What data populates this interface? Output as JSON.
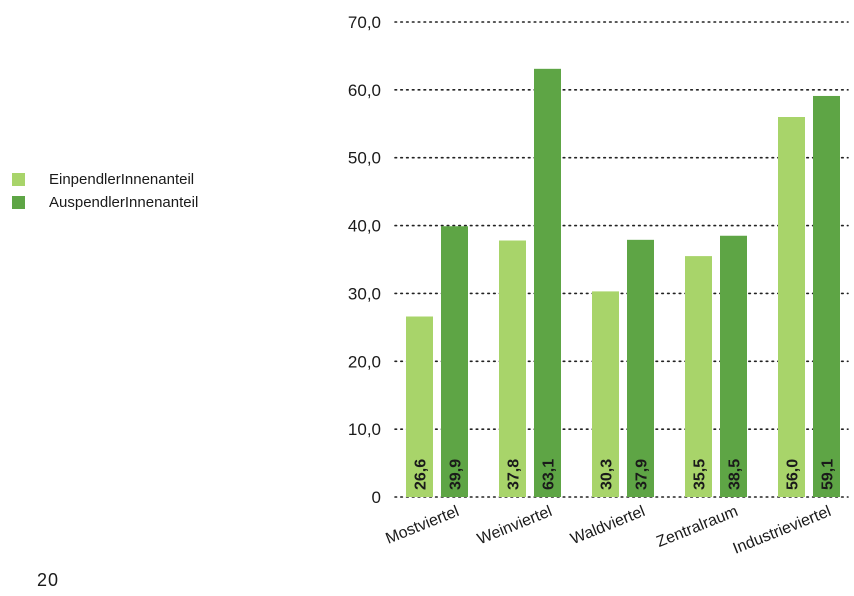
{
  "page_number": "20",
  "legend": [
    {
      "label": "EinpendlerInnenanteil",
      "color": "#a8d46a"
    },
    {
      "label": "AuspendlerInnenanteil",
      "color": "#5ea545"
    }
  ],
  "chart_data": {
    "type": "bar",
    "categories": [
      "Mostviertel",
      "Weinviertel",
      "Waldviertel",
      "Zentralraum",
      "Industrieviertel"
    ],
    "series": [
      {
        "name": "EinpendlerInnenanteil",
        "values": [
          26.6,
          37.8,
          30.3,
          35.5,
          56.0
        ],
        "value_labels": [
          "26,6",
          "37,8",
          "30,3",
          "35,5",
          "56,0"
        ],
        "color": "#a8d46a"
      },
      {
        "name": "AuspendlerInnenanteil",
        "values": [
          39.9,
          63.1,
          37.9,
          38.5,
          59.1
        ],
        "value_labels": [
          "39,9",
          "63,1",
          "37,9",
          "38,5",
          "59,1"
        ],
        "color": "#5ea545"
      }
    ],
    "y_ticks": [
      0,
      10,
      20,
      30,
      40,
      50,
      60,
      70
    ],
    "y_tick_labels": [
      "0",
      "10,0",
      "20,0",
      "30,0",
      "40,0",
      "50,0",
      "60,0",
      "70,0"
    ],
    "ylim": [
      0,
      70
    ],
    "grid": "horizontal dotted",
    "legend_position": "left"
  }
}
